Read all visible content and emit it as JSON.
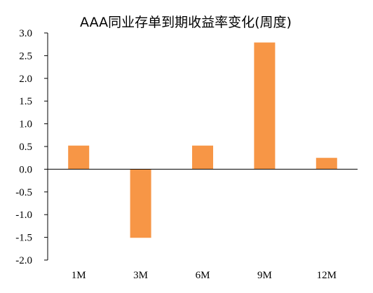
{
  "chart_data": {
    "type": "bar",
    "title": "AAA同业存单到期收益率变化(周度)",
    "xlabel": "",
    "ylabel": "",
    "categories": [
      "1M",
      "3M",
      "6M",
      "9M",
      "12M"
    ],
    "series": [
      {
        "values": [
          0.52,
          -1.51,
          0.52,
          2.79,
          0.25
        ]
      }
    ],
    "ylim": [
      -2.0,
      3.0
    ],
    "yticks": [
      "3.0",
      "2.5",
      "2.0",
      "1.5",
      "1.0",
      "0.5",
      "0.0",
      "-0.5",
      "-1.0",
      "-1.5",
      "-2.0"
    ],
    "grid": false,
    "legend": "none",
    "colors": {
      "bar": "#F79646",
      "axis": "#000000"
    }
  }
}
